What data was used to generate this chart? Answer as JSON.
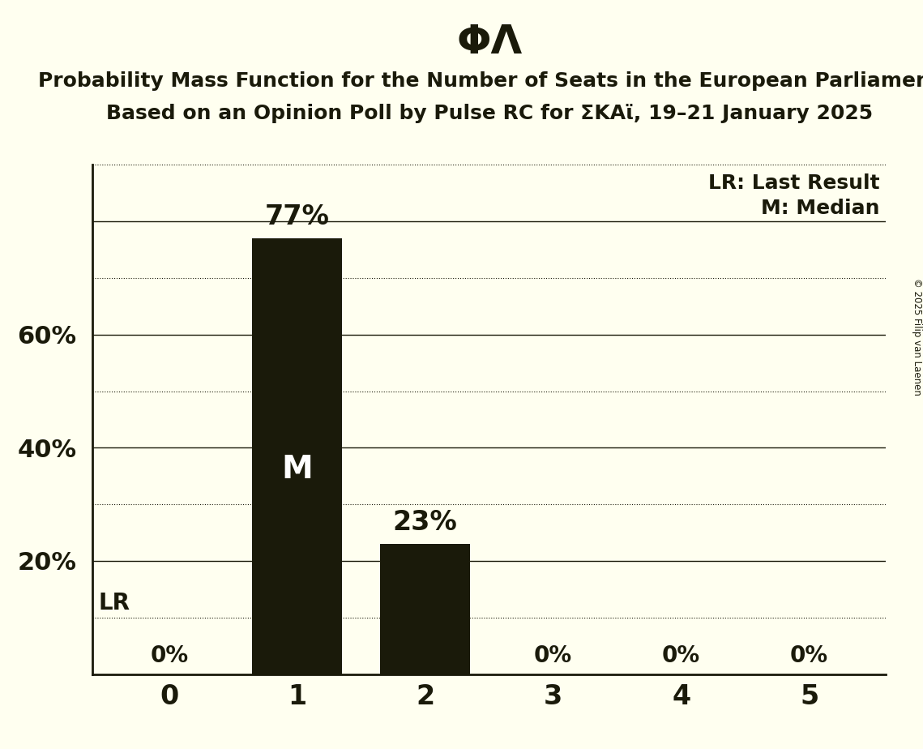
{
  "title_symbol": "ΦΛ",
  "subtitle_line1": "Probability Mass Function for the Number of Seats in the European Parliament",
  "subtitle_line2": "Based on an Opinion Poll by Pulse RC for ΣΚΑϊ, 19–21 January 2025",
  "copyright": "© 2025 Filip van Laenen",
  "categories": [
    0,
    1,
    2,
    3,
    4,
    5
  ],
  "values": [
    0.0,
    0.77,
    0.23,
    0.0,
    0.0,
    0.0
  ],
  "bar_color": "#1a1a0a",
  "background_color": "#fffff0",
  "solid_grid": [
    0.2,
    0.4,
    0.6,
    0.8
  ],
  "dotted_grid": [
    0.1,
    0.3,
    0.5,
    0.7,
    0.9
  ],
  "lr_value": 0.1,
  "lr_label": "LR",
  "median_bar_index": 1,
  "median_label": "M",
  "legend_lr": "LR: Last Result",
  "legend_m": "M: Median",
  "bar_labels": [
    "0%",
    "77%",
    "23%",
    "0%",
    "0%",
    "0%"
  ],
  "ylim": [
    0,
    0.9
  ],
  "text_color": "#1a1a0a",
  "font_family": "DejaVu Sans",
  "title_fontsize": 36,
  "subtitle_fontsize": 18,
  "ytick_fontsize": 22,
  "xtick_fontsize": 24,
  "bar_label_fontsize_large": 24,
  "bar_label_fontsize_small": 20,
  "legend_fontsize": 18,
  "lr_fontsize": 20,
  "median_fontsize": 28
}
